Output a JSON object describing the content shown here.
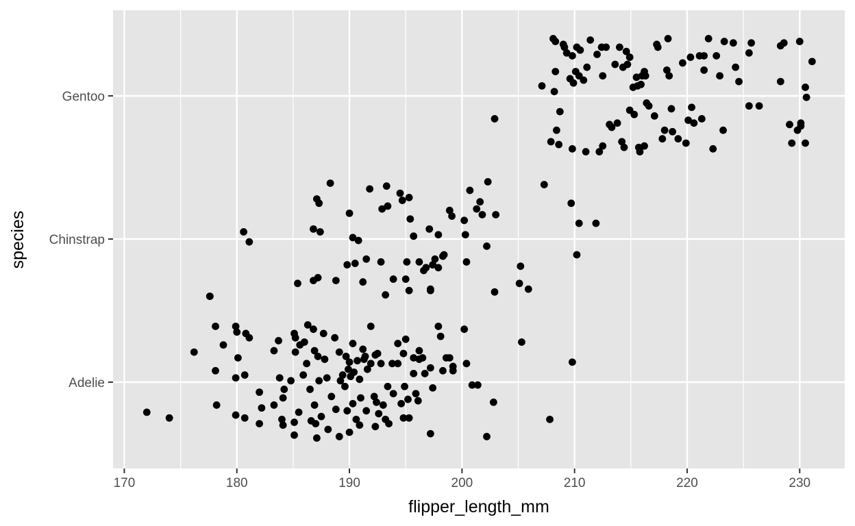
{
  "chart_data": {
    "type": "scatter",
    "title": "",
    "xlabel": "flipper_length_mm",
    "ylabel": "species",
    "xlim": [
      169,
      234
    ],
    "x_ticks": [
      170,
      180,
      190,
      200,
      210,
      220,
      230
    ],
    "x_tick_labels": [
      "170",
      "180",
      "190",
      "200",
      "210",
      "220",
      "230"
    ],
    "categories": [
      "Adelie",
      "Chinstrap",
      "Gentoo"
    ],
    "grid": true,
    "legend": "none",
    "point_color": "#000000",
    "panel_color": "#e5e5e5",
    "series": [
      {
        "category": "Adelie",
        "points": [
          [
            172,
            -0.21
          ],
          [
            174,
            -0.25
          ],
          [
            176.2,
            0.21
          ],
          [
            177.6,
            0.6
          ],
          [
            178.1,
            0.39
          ],
          [
            178.1,
            0.08
          ],
          [
            178.2,
            -0.16
          ],
          [
            178.8,
            0.26
          ],
          [
            179.9,
            0.39
          ],
          [
            180,
            0.35
          ],
          [
            180.1,
            0.17
          ],
          [
            179.9,
            0.03
          ],
          [
            179.9,
            -0.23
          ],
          [
            180.7,
            0.05
          ],
          [
            180.8,
            0.34
          ],
          [
            181.1,
            0.31
          ],
          [
            180.7,
            -0.25
          ],
          [
            182,
            -0.07
          ],
          [
            182,
            -0.29
          ],
          [
            182.2,
            -0.18
          ],
          [
            183.3,
            0.22
          ],
          [
            183.3,
            -0.16
          ],
          [
            183.7,
            0.29
          ],
          [
            183.8,
            0.03
          ],
          [
            184.2,
            -0.05
          ],
          [
            184.1,
            -0.11
          ],
          [
            184,
            -0.26
          ],
          [
            184.1,
            -0.3
          ],
          [
            184.8,
            0.01
          ],
          [
            185.1,
            0.34
          ],
          [
            185.2,
            0.31
          ],
          [
            185.2,
            0.21
          ],
          [
            185.1,
            -0.37
          ],
          [
            185.1,
            -0.28
          ],
          [
            185.5,
            -0.21
          ],
          [
            185.6,
            0.26
          ],
          [
            185.9,
            0.05
          ],
          [
            186,
            0.28
          ],
          [
            186.3,
            0.4
          ],
          [
            186.2,
            0.13
          ],
          [
            186.5,
            -0.05
          ],
          [
            186.6,
            -0.27
          ],
          [
            186.8,
            0.37
          ],
          [
            186.9,
            0.22
          ],
          [
            186.9,
            -0.16
          ],
          [
            187,
            -0.29
          ],
          [
            187.1,
            -0.39
          ],
          [
            187.2,
            0.18
          ],
          [
            187.3,
            0.01
          ],
          [
            187.5,
            -0.24
          ],
          [
            187.7,
            0.34
          ],
          [
            187.8,
            0.16
          ],
          [
            188,
            0.03
          ],
          [
            188.1,
            -0.33
          ],
          [
            188.4,
            -0.1
          ],
          [
            188.7,
            0.31
          ],
          [
            188.8,
            -0.19
          ],
          [
            189.1,
            -0.38
          ],
          [
            189.1,
            0.21
          ],
          [
            189.2,
            0.01
          ],
          [
            189.4,
            0.05
          ],
          [
            189.6,
            -0.03
          ],
          [
            189.7,
            0.18
          ],
          [
            189.8,
            -0.2
          ],
          [
            189.9,
            0.09
          ],
          [
            190,
            0.14
          ],
          [
            190,
            -0.35
          ],
          [
            190.1,
            0.04
          ],
          [
            190.3,
            0.27
          ],
          [
            190.4,
            0.07
          ],
          [
            190.3,
            -0.15
          ],
          [
            190.6,
            -0.26
          ],
          [
            190.7,
            0.15
          ],
          [
            190.9,
            0.02
          ],
          [
            190.9,
            -0.3
          ],
          [
            191,
            -0.11
          ],
          [
            191.2,
            0.23
          ],
          [
            191.3,
            0.16
          ],
          [
            191.4,
            0.18
          ],
          [
            191.5,
            -0.2
          ],
          [
            191.6,
            0.09
          ],
          [
            191.9,
            0.39
          ],
          [
            191.9,
            0.13
          ],
          [
            192.2,
            -0.1
          ],
          [
            192.3,
            -0.31
          ],
          [
            192.3,
            0.19
          ],
          [
            192.4,
            -0.14
          ],
          [
            192.5,
            0.2
          ],
          [
            192.6,
            -0.22
          ],
          [
            192.8,
            0.13
          ],
          [
            193,
            -0.16
          ],
          [
            193.2,
            -0.26
          ],
          [
            193.4,
            -0.03
          ],
          [
            193.5,
            -0.29
          ],
          [
            193.8,
            0.13
          ],
          [
            193.9,
            -0.08
          ],
          [
            194.3,
            0.27
          ],
          [
            194.3,
            0.13
          ],
          [
            194.6,
            -0.15
          ],
          [
            194.8,
            0.2
          ],
          [
            194.9,
            -0.03
          ],
          [
            194.8,
            -0.25
          ],
          [
            195,
            0.3
          ],
          [
            195.2,
            -0.12
          ],
          [
            195.3,
            -0.25
          ],
          [
            195.7,
            0.17
          ],
          [
            195.7,
            0.06
          ],
          [
            195.9,
            -0.08
          ],
          [
            196.1,
            -0.13
          ],
          [
            196.2,
            0.22
          ],
          [
            196.2,
            0.16
          ],
          [
            196.5,
            0.17
          ],
          [
            196.7,
            0.06
          ],
          [
            197.2,
            -0.36
          ],
          [
            197.2,
            0.1
          ],
          [
            197.4,
            -0.04
          ],
          [
            197.9,
            0.39
          ],
          [
            198.1,
            0.32
          ],
          [
            198.3,
            0.08
          ],
          [
            198.6,
            0.17
          ],
          [
            198.9,
            0.17
          ],
          [
            199.2,
            0.11
          ],
          [
            199.2,
            0.08
          ],
          [
            200.2,
            0.37
          ],
          [
            200.4,
            0.13
          ],
          [
            200.9,
            -0.02
          ],
          [
            201.4,
            -0.02
          ],
          [
            202.2,
            -0.38
          ],
          [
            202.8,
            -0.14
          ],
          [
            205.3,
            0.28
          ],
          [
            207.8,
            -0.26
          ],
          [
            209.8,
            0.14
          ]
        ]
      },
      {
        "category": "Chinstrap",
        "points": [
          [
            177.6,
            -0.4
          ],
          [
            180.6,
            0.05
          ],
          [
            181.1,
            -0.02
          ],
          [
            185.4,
            -0.31
          ],
          [
            186.8,
            -0.29
          ],
          [
            186.8,
            0.07
          ],
          [
            187.2,
            -0.27
          ],
          [
            187.1,
            0.28
          ],
          [
            187.3,
            0.25
          ],
          [
            187.4,
            0.05
          ],
          [
            188.3,
            0.39
          ],
          [
            188.8,
            -0.29
          ],
          [
            189.8,
            -0.18
          ],
          [
            190,
            0.18
          ],
          [
            190.3,
            0.01
          ],
          [
            190.5,
            -0.17
          ],
          [
            190.8,
            -0.01
          ],
          [
            191.2,
            -0.3
          ],
          [
            191.5,
            -0.14
          ],
          [
            191.8,
            0.35
          ],
          [
            192.8,
            -0.16
          ],
          [
            192.9,
            0.21
          ],
          [
            193.2,
            -0.39
          ],
          [
            193.3,
            0.37
          ],
          [
            193.4,
            0.23
          ],
          [
            193.9,
            -0.28
          ],
          [
            194.5,
            0.32
          ],
          [
            194.7,
            0.27
          ],
          [
            195,
            -0.28
          ],
          [
            195.3,
            -0.36
          ],
          [
            195.1,
            -0.16
          ],
          [
            195.3,
            0.29
          ],
          [
            195.4,
            0.14
          ],
          [
            195.7,
            0.02
          ],
          [
            196.2,
            -0.16
          ],
          [
            196.6,
            -0.22
          ],
          [
            196.8,
            -0.2
          ],
          [
            197.1,
            0.07
          ],
          [
            197.2,
            -0.36
          ],
          [
            197.2,
            -0.35
          ],
          [
            197.4,
            -0.18
          ],
          [
            197.6,
            -0.14
          ],
          [
            197.9,
            0.03
          ],
          [
            197.9,
            -0.2
          ],
          [
            198.3,
            -0.12
          ],
          [
            198.4,
            -0.11
          ],
          [
            198.9,
            0.2
          ],
          [
            199.1,
            0.16
          ],
          [
            200.2,
            0.13
          ],
          [
            200.3,
            0.03
          ],
          [
            200.4,
            -0.16
          ],
          [
            200.7,
            0.34
          ],
          [
            201.3,
            0.21
          ],
          [
            201.6,
            0.26
          ],
          [
            201.8,
            0.17
          ],
          [
            202.2,
            -0.05
          ],
          [
            202.3,
            0.4
          ],
          [
            202.9,
            -0.37
          ],
          [
            203,
            0.17
          ],
          [
            205.1,
            -0.31
          ],
          [
            205.2,
            -0.19
          ],
          [
            205.9,
            -0.35
          ],
          [
            207.3,
            0.38
          ],
          [
            209.7,
            0.25
          ],
          [
            210.2,
            -0.11
          ],
          [
            210.4,
            0.11
          ],
          [
            211.9,
            0.11
          ]
        ]
      },
      {
        "category": "Gentoo",
        "points": [
          [
            202.9,
            -0.16
          ],
          [
            207.1,
            0.07
          ],
          [
            207.9,
            -0.32
          ],
          [
            208.1,
            0.4
          ],
          [
            208.3,
            0.38
          ],
          [
            208.3,
            0.17
          ],
          [
            208.4,
            -0.24
          ],
          [
            208.2,
            0.03
          ],
          [
            208.6,
            -0.34
          ],
          [
            208.7,
            -0.11
          ],
          [
            209,
            0.36
          ],
          [
            209.1,
            0.34
          ],
          [
            209.3,
            0.3
          ],
          [
            209.6,
            0.12
          ],
          [
            209.8,
            0.28
          ],
          [
            209.8,
            -0.37
          ],
          [
            209.9,
            0.09
          ],
          [
            210.1,
            0.17
          ],
          [
            210.2,
            0.34
          ],
          [
            210.4,
            0.14
          ],
          [
            210.5,
            0.32
          ],
          [
            210.8,
            0.11
          ],
          [
            211,
            -0.39
          ],
          [
            211.1,
            0.2
          ],
          [
            211.4,
            0.39
          ],
          [
            212,
            0.29
          ],
          [
            212.2,
            -0.39
          ],
          [
            212.4,
            0.34
          ],
          [
            212.5,
            0.14
          ],
          [
            212.5,
            -0.35
          ],
          [
            212.8,
            0.34
          ],
          [
            213.1,
            -0.2
          ],
          [
            213.3,
            -0.22
          ],
          [
            213.6,
            0.22
          ],
          [
            213.8,
            -0.19
          ],
          [
            214,
            0.34
          ],
          [
            214.2,
            -0.32
          ],
          [
            214.3,
            0.2
          ],
          [
            214.4,
            -0.36
          ],
          [
            214.6,
            0.31
          ],
          [
            214.7,
            0.22
          ],
          [
            214.9,
            -0.1
          ],
          [
            214.9,
            0.27
          ],
          [
            215.2,
            0.06
          ],
          [
            215.3,
            -0.13
          ],
          [
            215.5,
            0.13
          ],
          [
            215.6,
            0.07
          ],
          [
            215.7,
            -0.36
          ],
          [
            215.8,
            -0.39
          ],
          [
            215.9,
            0.08
          ],
          [
            216,
            0.14
          ],
          [
            216.2,
            0.17
          ],
          [
            216.2,
            -0.35
          ],
          [
            216.3,
            0.14
          ],
          [
            216.4,
            -0.05
          ],
          [
            216.6,
            -0.07
          ],
          [
            217.1,
            -0.14
          ],
          [
            217.3,
            0.36
          ],
          [
            217.4,
            0.34
          ],
          [
            217.8,
            -0.3
          ],
          [
            218,
            -0.24
          ],
          [
            218.2,
            0.18
          ],
          [
            218.4,
            0.14
          ],
          [
            218.3,
            0.4
          ],
          [
            218.6,
            -0.09
          ],
          [
            218.7,
            -0.25
          ],
          [
            219.2,
            -0.3
          ],
          [
            219.6,
            0.23
          ],
          [
            219.9,
            -0.33
          ],
          [
            220.1,
            -0.17
          ],
          [
            220.3,
            0.27
          ],
          [
            220.4,
            -0.08
          ],
          [
            220.6,
            -0.19
          ],
          [
            221.1,
            0.28
          ],
          [
            221.3,
            -0.16
          ],
          [
            221.5,
            0.28
          ],
          [
            221.5,
            0.18
          ],
          [
            221.9,
            0.4
          ],
          [
            222.3,
            -0.37
          ],
          [
            222.6,
            0.28
          ],
          [
            222.9,
            0.14
          ],
          [
            223.2,
            -0.24
          ],
          [
            223.3,
            0.38
          ],
          [
            224.1,
            0.37
          ],
          [
            224.3,
            0.2
          ],
          [
            224.6,
            0.1
          ],
          [
            225.5,
            0.3
          ],
          [
            225.7,
            0.37
          ],
          [
            225.5,
            -0.07
          ],
          [
            226.4,
            -0.07
          ],
          [
            228.3,
            0.1
          ],
          [
            228.3,
            0.35
          ],
          [
            228.6,
            0.37
          ],
          [
            229.1,
            -0.2
          ],
          [
            229.3,
            -0.33
          ],
          [
            229.8,
            -0.24
          ],
          [
            230,
            0.38
          ],
          [
            230.1,
            -0.21
          ],
          [
            230.1,
            -0.19
          ],
          [
            230.5,
            -0.33
          ],
          [
            230.5,
            0.06
          ],
          [
            230.6,
            -0.01
          ],
          [
            231.1,
            0.24
          ]
        ]
      }
    ]
  }
}
